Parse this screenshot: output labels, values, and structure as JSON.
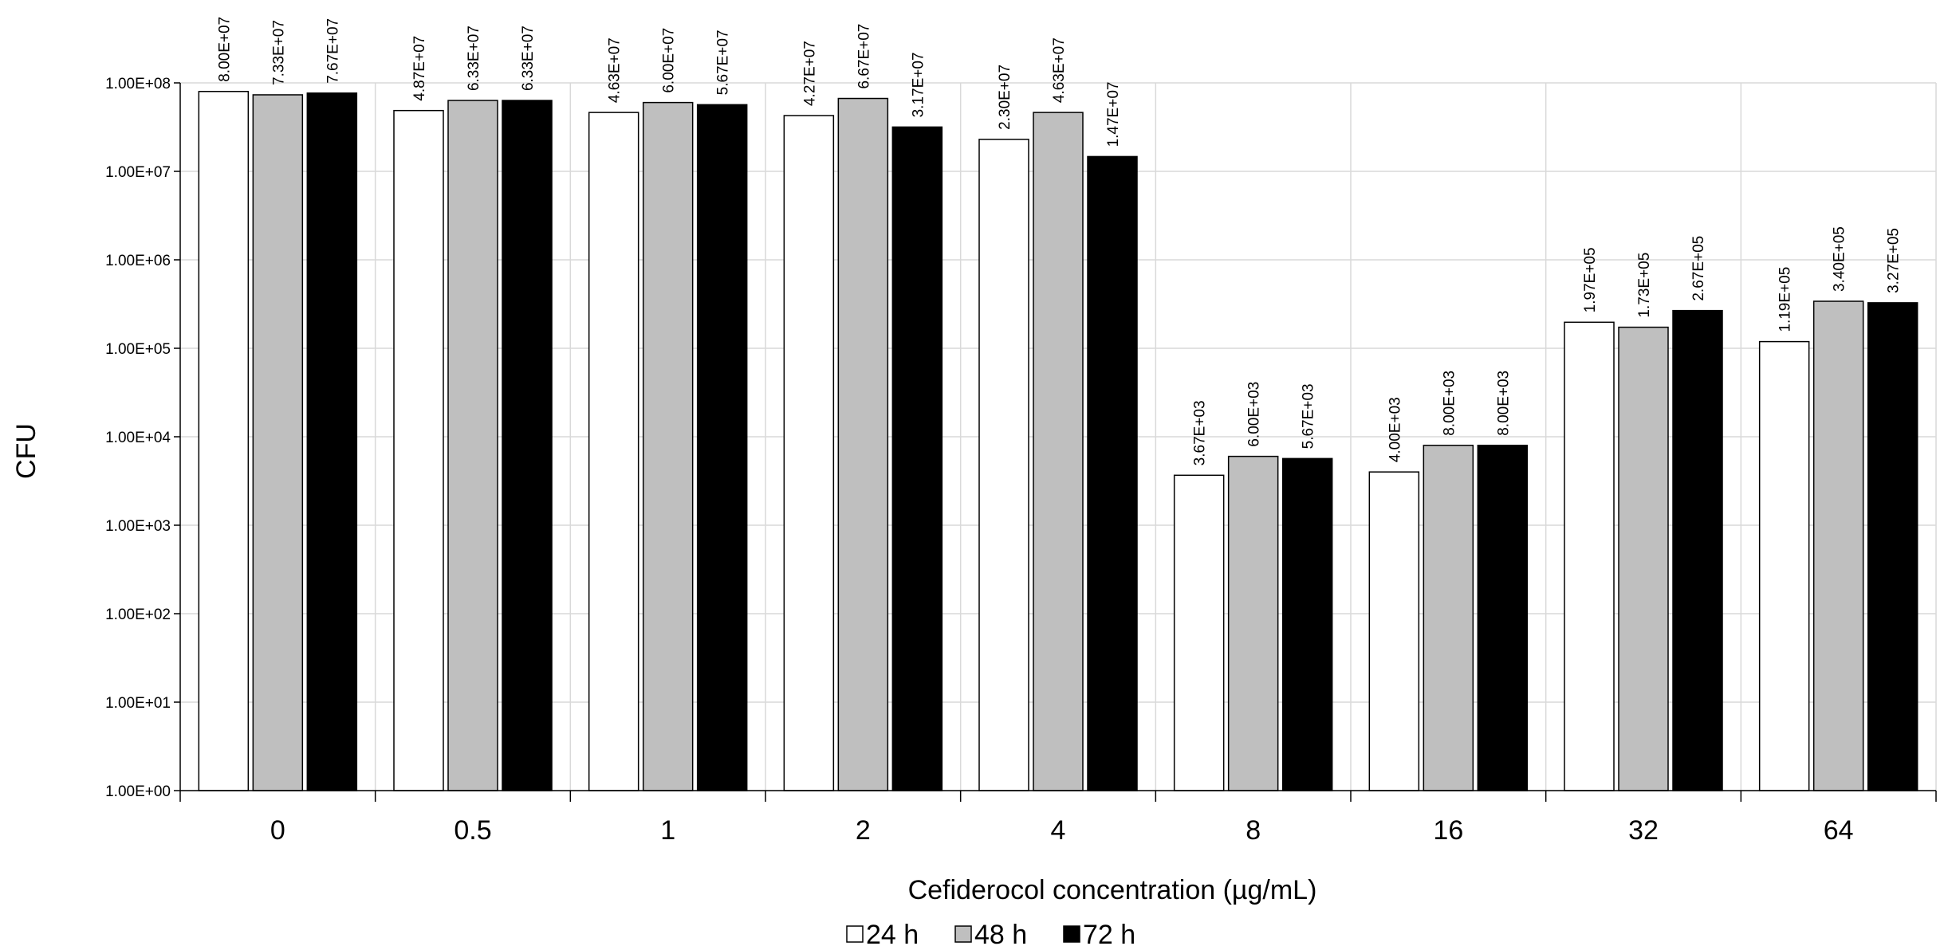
{
  "chart_data": {
    "type": "bar",
    "title": "",
    "xlabel": "Cefiderocol concentration (µg/mL)",
    "ylabel": "CFU",
    "yscale": "log",
    "ylim": [
      1,
      100000000
    ],
    "y_ticks": [
      1,
      10,
      100,
      1000,
      10000,
      100000,
      1000000,
      10000000,
      100000000
    ],
    "y_tick_labels": [
      "1.00E+00",
      "1.00E+01",
      "1.00E+02",
      "1.00E+03",
      "1.00E+04",
      "1.00E+05",
      "1.00E+06",
      "1.00E+07",
      "1.00E+08"
    ],
    "categories": [
      "0",
      "0.5",
      "1",
      "2",
      "4",
      "8",
      "16",
      "32",
      "64"
    ],
    "grid": true,
    "legend_position": "bottom",
    "series": [
      {
        "name": "24 h",
        "color": "#ffffff",
        "values": [
          80000000,
          48700000,
          46300000,
          42700000,
          23000000,
          3670,
          4000,
          197000,
          119000
        ],
        "labels": [
          "8.00E+07",
          "4.87E+07",
          "4.63E+07",
          "4.27E+07",
          "2.30E+07",
          "3.67E+03",
          "4.00E+03",
          "1.97E+05",
          "1.19E+05"
        ]
      },
      {
        "name": "48 h",
        "color": "#bfbfbf",
        "values": [
          73300000,
          63300000,
          60000000,
          66700000,
          46300000,
          6000,
          8000,
          173000,
          340000
        ],
        "labels": [
          "7.33E+07",
          "6.33E+07",
          "6.00E+07",
          "6.67E+07",
          "4.63E+07",
          "6.00E+03",
          "8.00E+03",
          "1.73E+05",
          "3.40E+05"
        ]
      },
      {
        "name": "72 h",
        "color": "#000000",
        "values": [
          76700000,
          63300000,
          56700000,
          31700000,
          14700000,
          5670,
          8000,
          267000,
          327000
        ],
        "labels": [
          "7.67E+07",
          "6.33E+07",
          "5.67E+07",
          "3.17E+07",
          "1.47E+07",
          "5.67E+03",
          "8.00E+03",
          "2.67E+05",
          "3.27E+05"
        ]
      }
    ]
  }
}
